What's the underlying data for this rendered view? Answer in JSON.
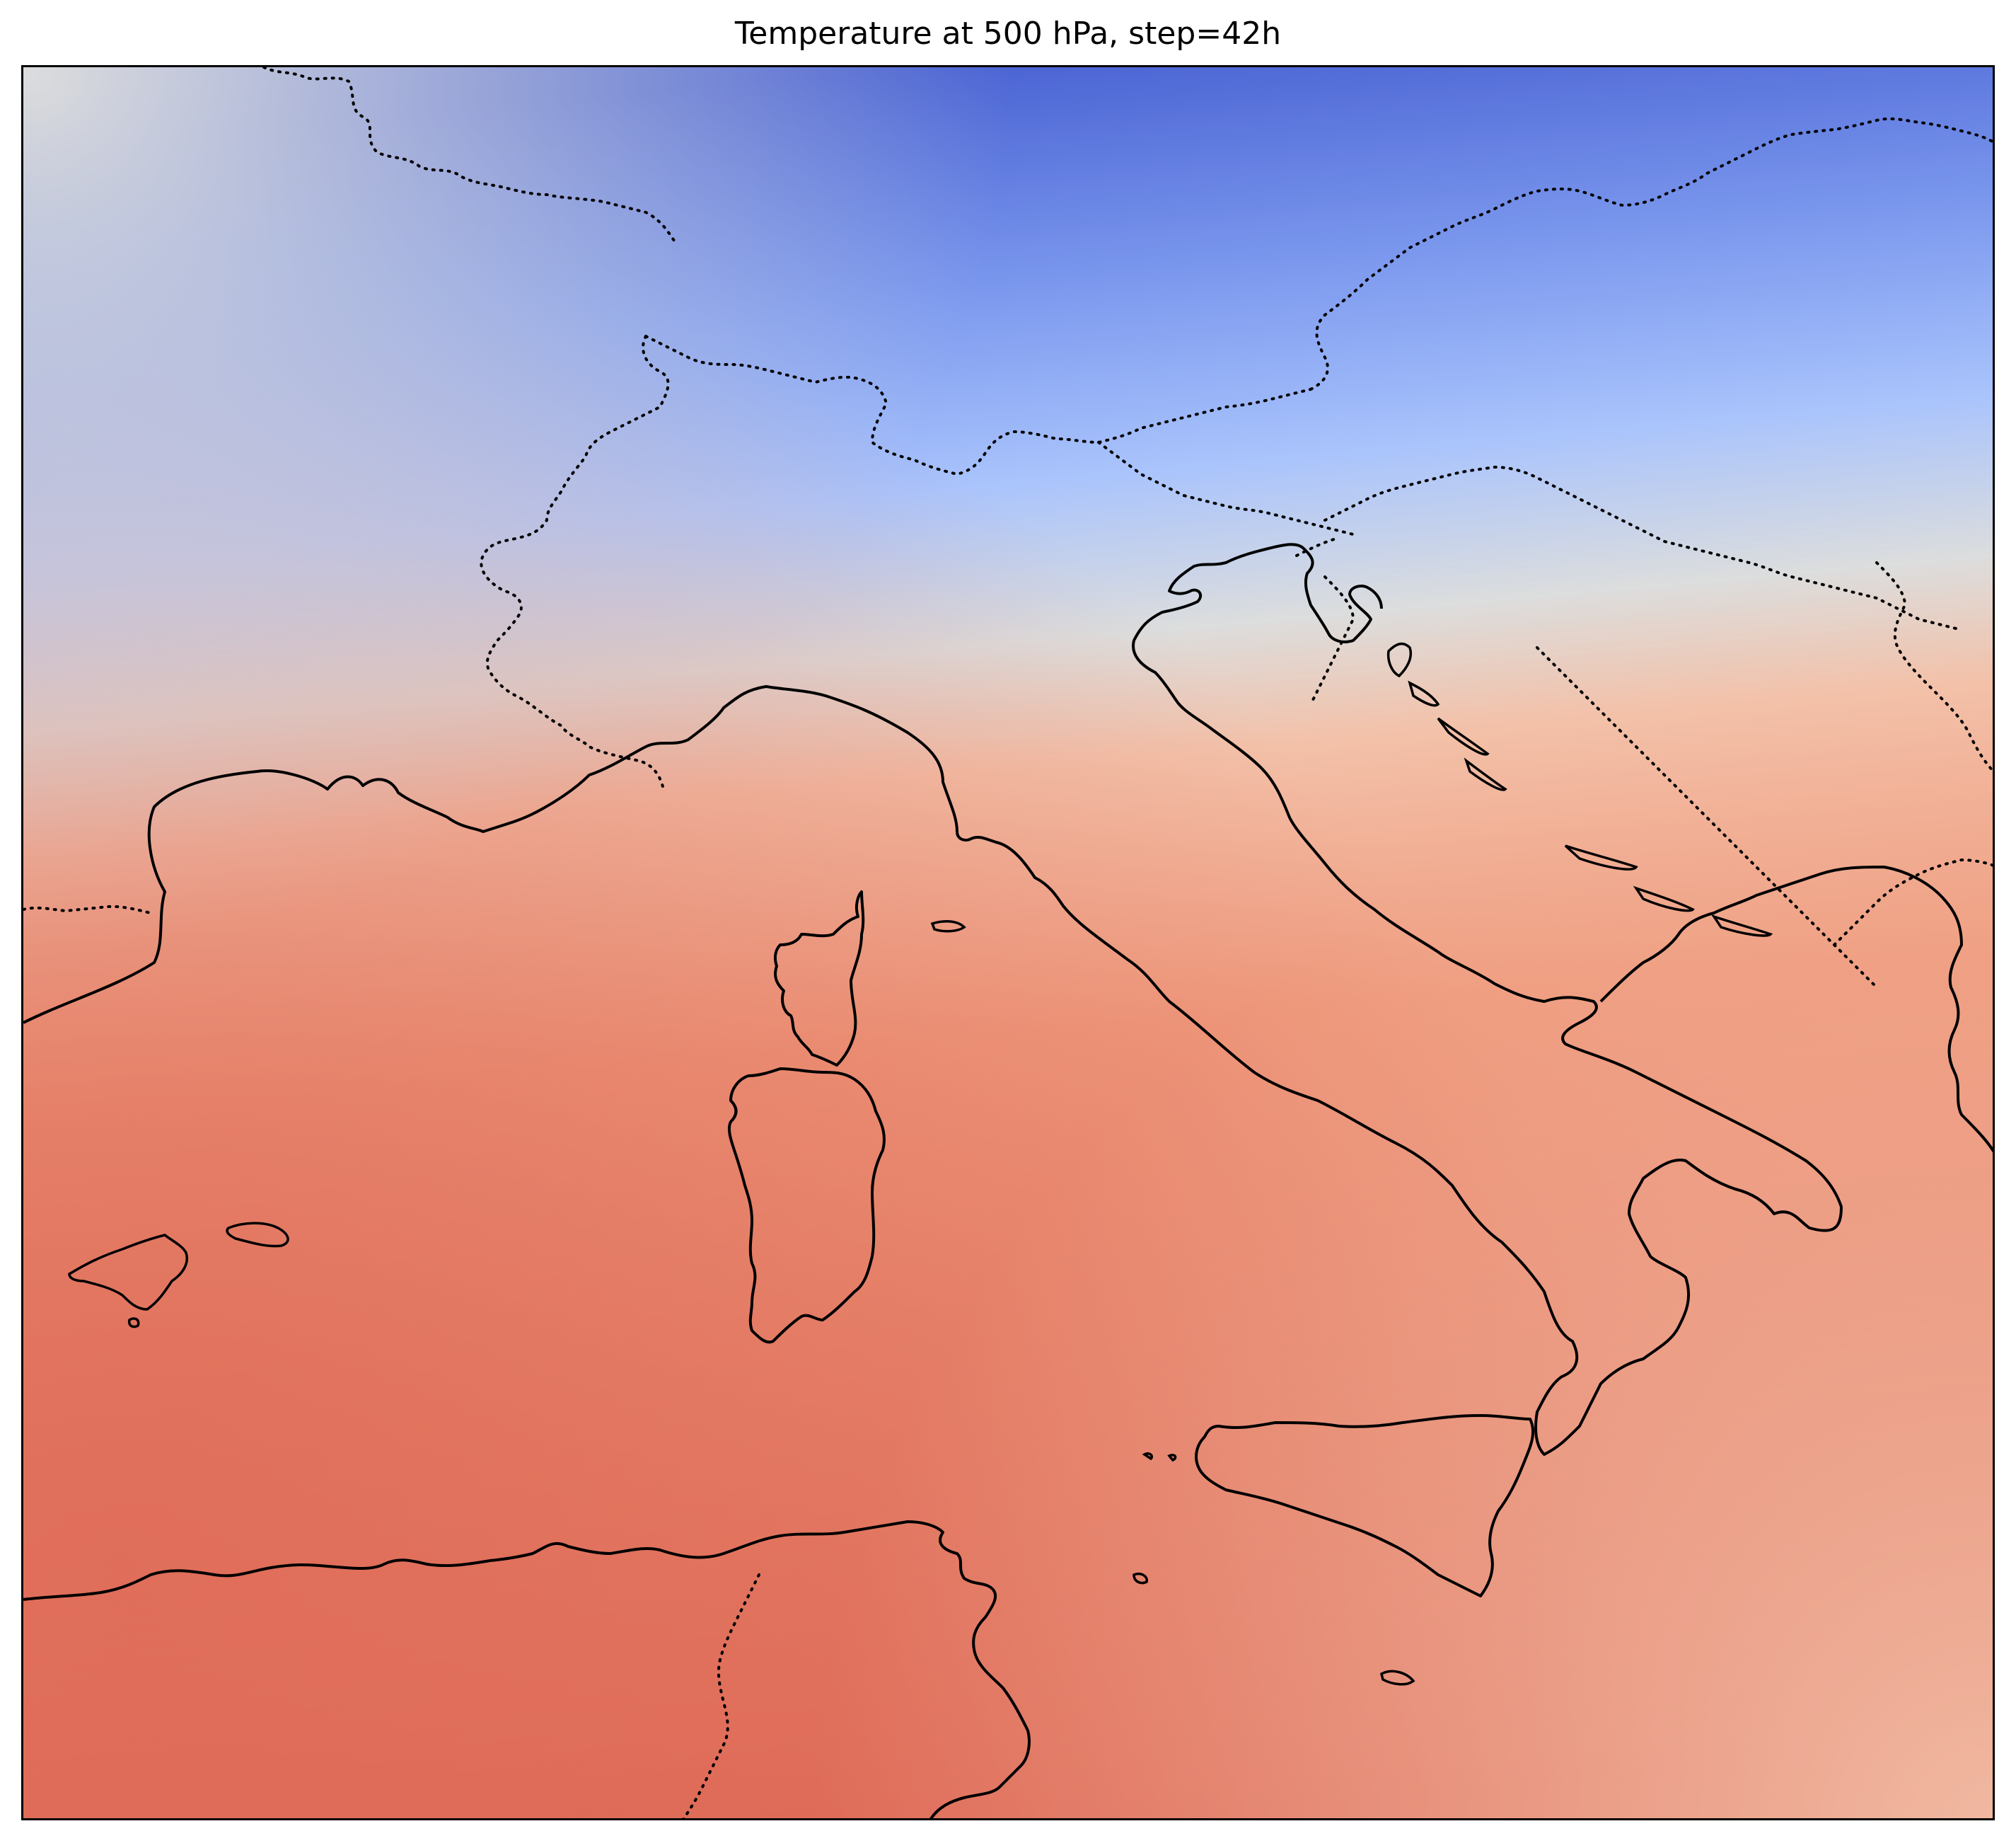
{
  "title": "Temperature at 500 hPa, step=42h",
  "map": {
    "field": "temperature",
    "level": "500 hPa",
    "step": "42h",
    "colormap": "coolwarm",
    "colors": {
      "cold_deep": "#4a63d3",
      "cold": "#7b98ee",
      "cool": "#aac4fc",
      "neutral": "#dcdddd",
      "mild": "#f3c1a9",
      "warm": "#ef9b7e",
      "hot": "#de6a57"
    },
    "features": [
      "coastlines",
      "country-borders"
    ]
  }
}
